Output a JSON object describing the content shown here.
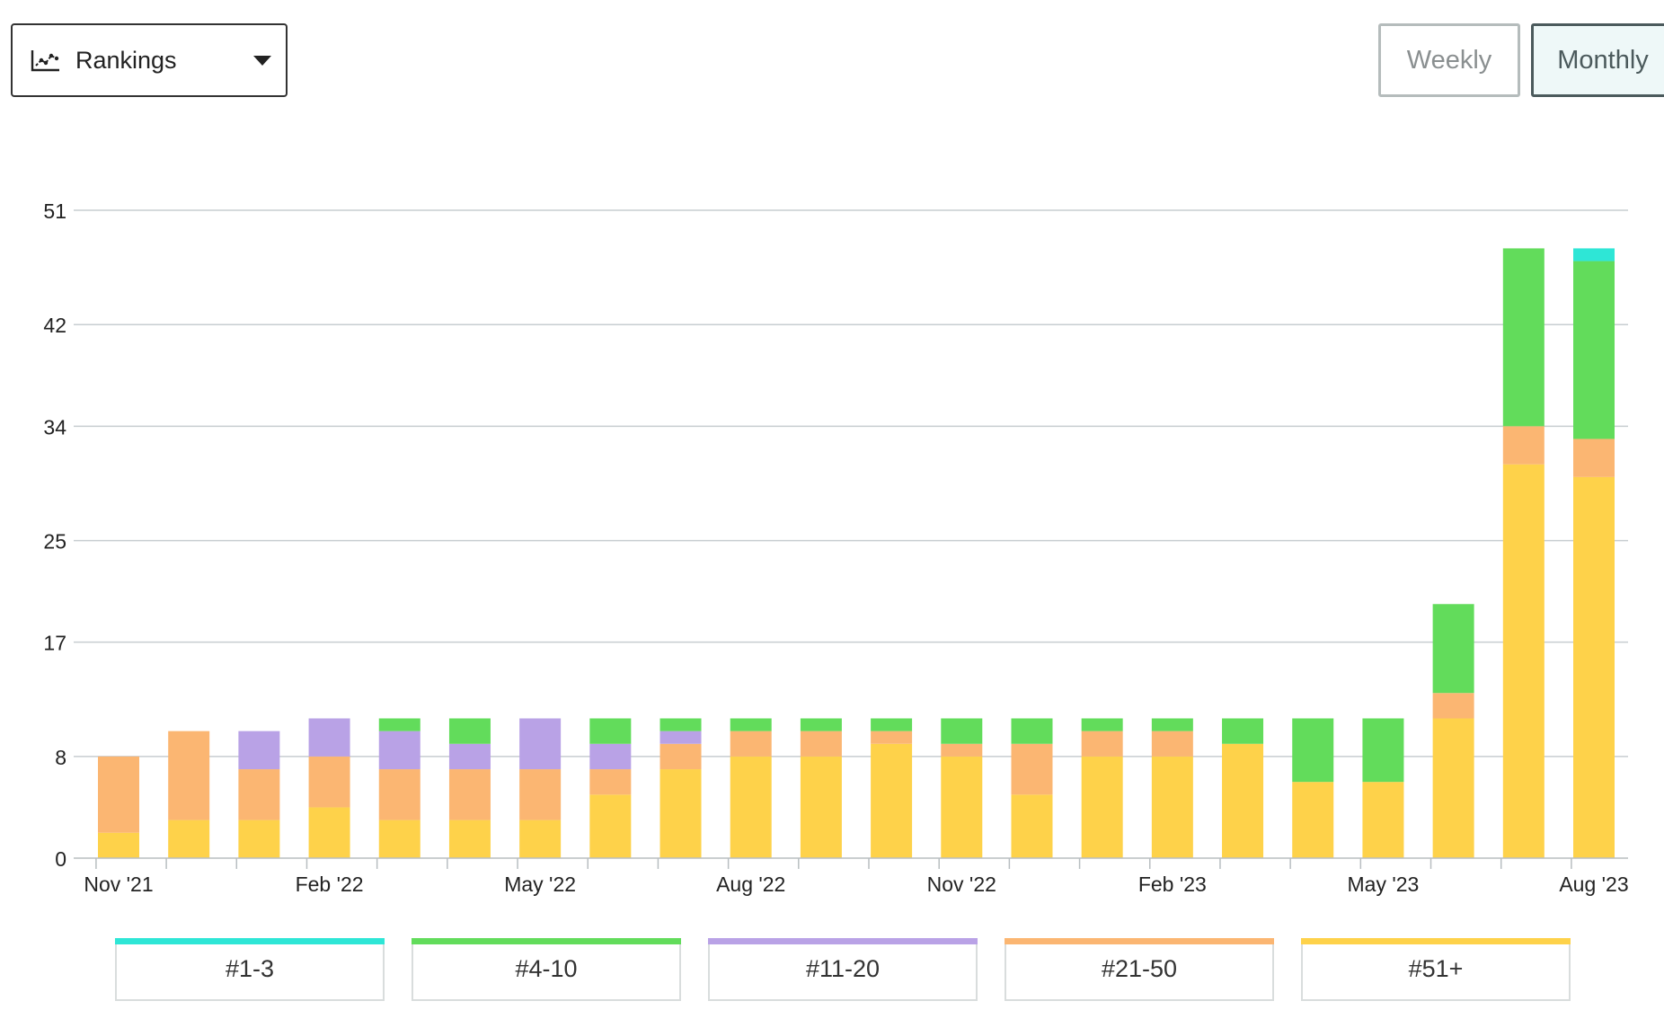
{
  "header": {
    "dropdown": {
      "label": "Rankings",
      "icon": "line-chart-icon"
    },
    "toggles": {
      "weekly": "Weekly",
      "monthly": "Monthly",
      "active": "monthly"
    }
  },
  "legend": [
    {
      "label": "#1-3",
      "color": "#2ee6d6"
    },
    {
      "label": "#4-10",
      "color": "#62dc5b"
    },
    {
      "label": "#11-20",
      "color": "#b9a2e6"
    },
    {
      "label": "#21-50",
      "color": "#fbb672"
    },
    {
      "label": "#51+",
      "color": "#fed24a"
    }
  ],
  "chart_data": {
    "type": "bar",
    "stacked": true,
    "x_tick_labels": [
      "Nov '21",
      "Feb '22",
      "May '22",
      "Aug '22",
      "Nov '22",
      "Feb '23",
      "May '23",
      "Aug '23"
    ],
    "categories": [
      "Nov '21",
      "Dec '21",
      "Jan '22",
      "Feb '22",
      "Mar '22",
      "Apr '22",
      "May '22",
      "Jun '22",
      "Jul '22",
      "Aug '22",
      "Sep '22",
      "Oct '22",
      "Nov '22",
      "Dec '22",
      "Jan '23",
      "Feb '23",
      "Mar '23",
      "Apr '23",
      "May '23",
      "Jun '23",
      "Jul '23",
      "Aug '23"
    ],
    "y_ticks": [
      0,
      8,
      17,
      25,
      34,
      42,
      51
    ],
    "ylim": [
      0,
      51
    ],
    "grid": true,
    "series": [
      {
        "name": "#51+",
        "color": "#fed24a",
        "values": [
          2,
          3,
          3,
          4,
          3,
          3,
          3,
          5,
          7,
          8,
          8,
          9,
          8,
          5,
          8,
          8,
          9,
          6,
          6,
          11,
          31,
          30
        ]
      },
      {
        "name": "#21-50",
        "color": "#fbb672",
        "values": [
          6,
          7,
          4,
          4,
          4,
          4,
          4,
          2,
          2,
          2,
          2,
          1,
          1,
          4,
          2,
          2,
          0,
          0,
          0,
          2,
          3,
          3
        ]
      },
      {
        "name": "#11-20",
        "color": "#b9a2e6",
        "values": [
          0,
          0,
          3,
          3,
          3,
          2,
          4,
          2,
          1,
          0,
          0,
          0,
          0,
          0,
          0,
          0,
          0,
          0,
          0,
          0,
          0,
          0
        ]
      },
      {
        "name": "#4-10",
        "color": "#62dc5b",
        "values": [
          0,
          0,
          0,
          0,
          1,
          2,
          0,
          2,
          1,
          1,
          1,
          1,
          2,
          2,
          1,
          1,
          2,
          5,
          5,
          7,
          14,
          14
        ]
      },
      {
        "name": "#1-3",
        "color": "#2ee6d6",
        "values": [
          0,
          0,
          0,
          0,
          0,
          0,
          0,
          0,
          0,
          0,
          0,
          0,
          0,
          0,
          0,
          0,
          0,
          0,
          0,
          0,
          0,
          1
        ]
      }
    ]
  }
}
